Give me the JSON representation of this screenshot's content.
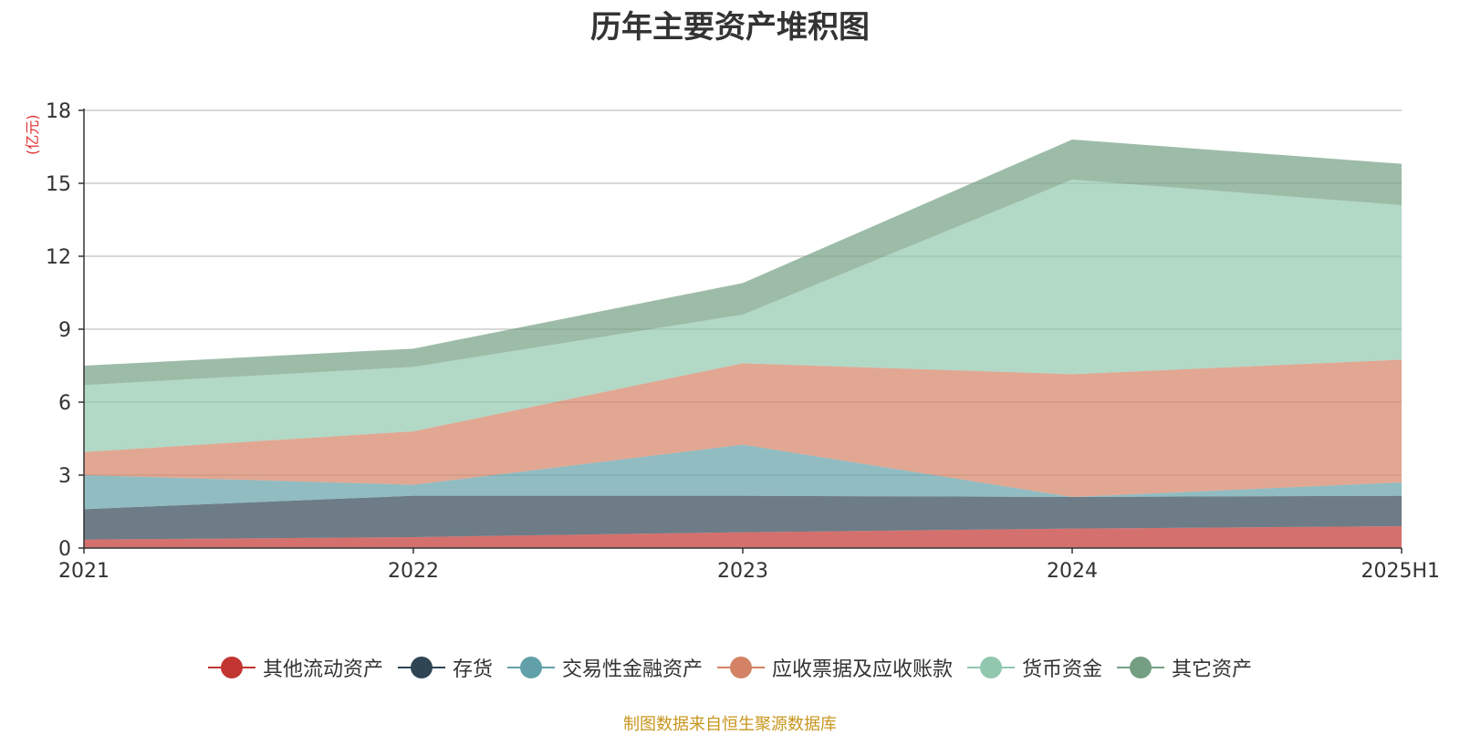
{
  "chart_data": {
    "type": "area",
    "stacked": true,
    "title": "历年主要资产堆积图",
    "unit_label": "(亿元)",
    "categories": [
      "2021",
      "2022",
      "2023",
      "2024",
      "2025H1"
    ],
    "ylim": [
      0,
      18
    ],
    "yticks": [
      0,
      3,
      6,
      9,
      12,
      15,
      18
    ],
    "grid": true,
    "legend_position": "bottom",
    "series": [
      {
        "name": "其他流动资产",
        "color": "#c23531",
        "values": [
          0.35,
          0.45,
          0.65,
          0.8,
          0.9
        ]
      },
      {
        "name": "存货",
        "color": "#2f4554",
        "values": [
          1.25,
          1.7,
          1.5,
          1.3,
          1.25
        ]
      },
      {
        "name": "交易性金融资产",
        "color": "#61a0a8",
        "values": [
          1.4,
          0.45,
          2.1,
          0.0,
          0.55
        ]
      },
      {
        "name": "应收票据及应收账款",
        "color": "#d48265",
        "values": [
          0.95,
          2.2,
          3.35,
          5.05,
          5.05
        ]
      },
      {
        "name": "货币资金",
        "color": "#91c7ae",
        "values": [
          2.75,
          2.65,
          2.0,
          8.0,
          6.35
        ]
      },
      {
        "name": "其它资产",
        "color": "#749f83",
        "values": [
          0.8,
          0.75,
          1.3,
          1.65,
          1.7
        ]
      }
    ]
  },
  "source_note": "制图数据来自恒生聚源数据库"
}
